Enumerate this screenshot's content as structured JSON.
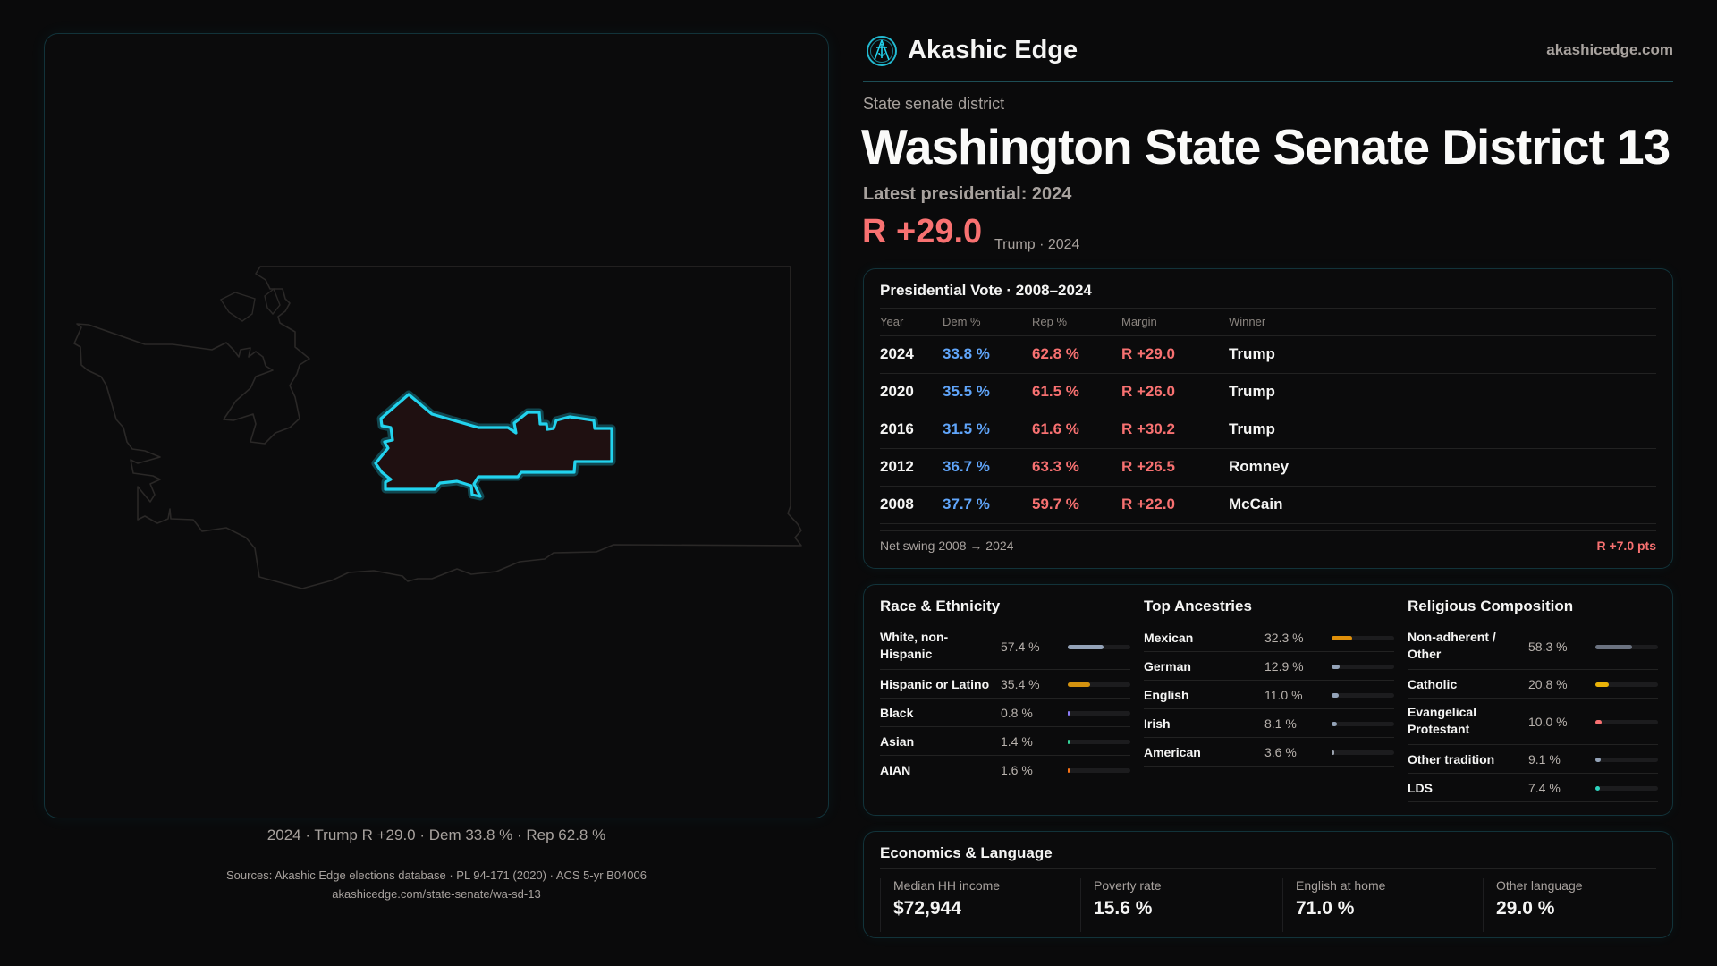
{
  "brand": {
    "name": "Akashic Edge",
    "site": "akashicedge.com",
    "logo_icon": "akashic-logo"
  },
  "header": {
    "kicker": "State senate district",
    "title": "Washington State Senate District 13",
    "latest": "Latest presidential: 2024",
    "margin": "R +29.0",
    "margin_sub": "Trump · 2024"
  },
  "map": {
    "caption": "2024 · Trump R +29.0 · Dem 33.8 % · Rep 62.8 %",
    "highlight_color": "#22d3ee",
    "fill_color": "#1f1011"
  },
  "presidential": {
    "title": "Presidential Vote · 2008–2024",
    "headers": [
      "Year",
      "Dem %",
      "Rep %",
      "Margin",
      "Winner"
    ],
    "rows": [
      {
        "year": "2024",
        "dem": "33.8 %",
        "rep": "62.8 %",
        "margin": "R +29.0",
        "winner": "Trump"
      },
      {
        "year": "2020",
        "dem": "35.5 %",
        "rep": "61.5 %",
        "margin": "R +26.0",
        "winner": "Trump"
      },
      {
        "year": "2016",
        "dem": "31.5 %",
        "rep": "61.6 %",
        "margin": "R +30.2",
        "winner": "Trump"
      },
      {
        "year": "2012",
        "dem": "36.7 %",
        "rep": "63.3 %",
        "margin": "R +26.5",
        "winner": "Romney"
      },
      {
        "year": "2008",
        "dem": "37.7 %",
        "rep": "59.7 %",
        "margin": "R +22.0",
        "winner": "McCain"
      }
    ],
    "swing_label": "Net swing 2008 → 2024",
    "swing_value": "R +7.0 pts"
  },
  "demographics": [
    {
      "title": "Race & Ethnicity",
      "items": [
        {
          "label": "White, non-Hispanic",
          "value": "57.4 %",
          "pct": 57.4,
          "color": "#94a3b8",
          "two": true
        },
        {
          "label": "Hispanic or Latino",
          "value": "35.4 %",
          "pct": 35.4,
          "color": "#d4920f"
        },
        {
          "label": "Black",
          "value": "0.8 %",
          "pct": 0.8,
          "color": "#8b7cf6"
        },
        {
          "label": "Asian",
          "value": "1.4 %",
          "pct": 1.4,
          "color": "#34d399"
        },
        {
          "label": "AIAN",
          "value": "1.6 %",
          "pct": 1.6,
          "color": "#f97316"
        }
      ]
    },
    {
      "title": "Top Ancestries",
      "items": [
        {
          "label": "Mexican",
          "value": "32.3 %",
          "pct": 32.3,
          "color": "#e0900a"
        },
        {
          "label": "German",
          "value": "12.9 %",
          "pct": 12.9,
          "color": "#94a3b8"
        },
        {
          "label": "English",
          "value": "11.0 %",
          "pct": 11.0,
          "color": "#94a3b8"
        },
        {
          "label": "Irish",
          "value": "8.1 %",
          "pct": 8.1,
          "color": "#94a3b8"
        },
        {
          "label": "American",
          "value": "3.6 %",
          "pct": 3.6,
          "color": "#9ca3af"
        }
      ]
    },
    {
      "title": "Religious Composition",
      "items": [
        {
          "label": "Non-adherent / Other",
          "value": "58.3 %",
          "pct": 58.3,
          "color": "#6b7280",
          "two": true
        },
        {
          "label": "Catholic",
          "value": "20.8 %",
          "pct": 20.8,
          "color": "#eab308"
        },
        {
          "label": "Evangelical Protestant",
          "value": "10.0 %",
          "pct": 10.0,
          "color": "#f87171",
          "two": true
        },
        {
          "label": "Other tradition",
          "value": "9.1 %",
          "pct": 9.1,
          "color": "#94a3b8"
        },
        {
          "label": "LDS",
          "value": "7.4 %",
          "pct": 7.4,
          "color": "#2dd4bf"
        }
      ]
    }
  ],
  "economics": {
    "title": "Economics & Language",
    "stats": [
      {
        "label": "Median HH income",
        "value": "$72,944"
      },
      {
        "label": "Poverty rate",
        "value": "15.6 %"
      },
      {
        "label": "English at home",
        "value": "71.0 %"
      },
      {
        "label": "Other language",
        "value": "29.0 %"
      }
    ]
  },
  "sources": {
    "line1": "Sources: Akashic Edge elections database · PL 94-171 (2020) · ACS 5-yr B04006",
    "line2": "akashicedge.com/state-senate/wa-sd-13"
  }
}
